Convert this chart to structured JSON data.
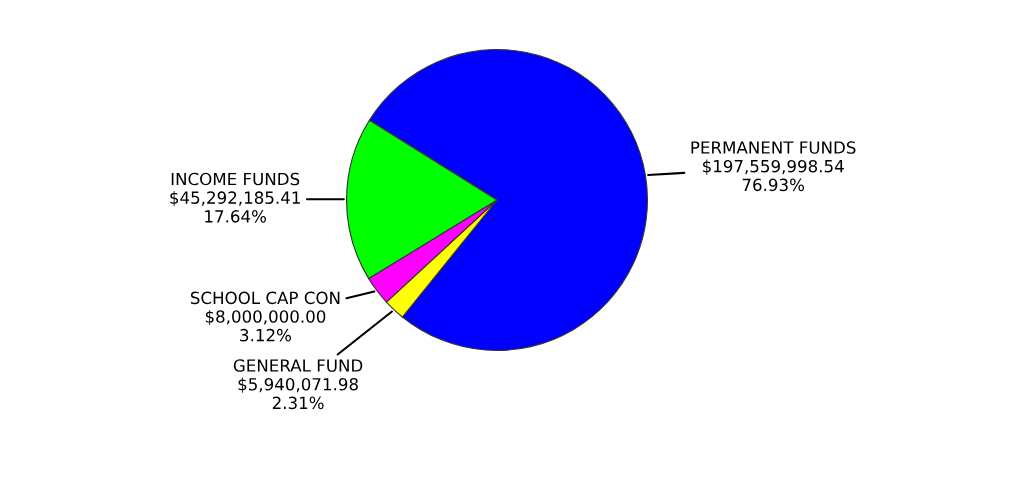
{
  "chart_data": {
    "type": "pie",
    "categories": [
      "PERMANENT FUNDS",
      "GENERAL FUND",
      "SCHOOL CAP CON",
      "INCOME FUNDS"
    ],
    "values": [
      197559998.54,
      5940071.98,
      8000000.0,
      45292185.41
    ],
    "value_labels": [
      "$197,559,998.54\n76.93%",
      "$5,940,071.98\n2.31%",
      "$8,000,000.00\n3.12%",
      "$45,292,185.41\n17.64%"
    ],
    "colors": [
      "#0000ff",
      "#ffff00",
      "#ff00ff",
      "#00ff00"
    ]
  }
}
